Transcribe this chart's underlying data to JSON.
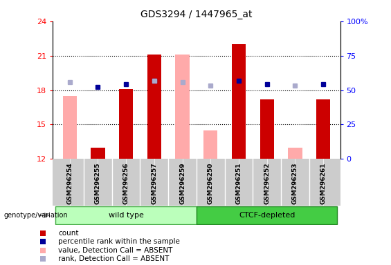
{
  "title": "GDS3294 / 1447965_at",
  "samples": [
    "GSM296254",
    "GSM296255",
    "GSM296256",
    "GSM296257",
    "GSM296259",
    "GSM296250",
    "GSM296251",
    "GSM296252",
    "GSM296253",
    "GSM296261"
  ],
  "count_values": [
    null,
    13.0,
    18.1,
    21.1,
    null,
    null,
    22.0,
    17.2,
    null,
    17.2
  ],
  "count_absent": [
    17.5,
    null,
    null,
    null,
    21.1,
    14.5,
    null,
    null,
    13.0,
    null
  ],
  "rank_present": [
    null,
    18.3,
    18.5,
    18.8,
    null,
    null,
    18.8,
    18.5,
    null,
    18.5
  ],
  "rank_absent": [
    18.7,
    null,
    null,
    18.8,
    18.7,
    18.4,
    null,
    null,
    18.4,
    null
  ],
  "groups": [
    "wild type",
    "wild type",
    "wild type",
    "wild type",
    "wild type",
    "CTCF-depleted",
    "CTCF-depleted",
    "CTCF-depleted",
    "CTCF-depleted",
    "CTCF-depleted"
  ],
  "ylim_left": [
    12,
    24
  ],
  "ylim_right": [
    0,
    100
  ],
  "yticks_left": [
    12,
    15,
    18,
    21,
    24
  ],
  "yticks_right": [
    0,
    25,
    50,
    75,
    100
  ],
  "ytick_right_labels": [
    "0",
    "25",
    "50",
    "75",
    "100%"
  ],
  "color_count": "#cc0000",
  "color_count_absent": "#ffaaaa",
  "color_rank_present": "#000099",
  "color_rank_absent": "#aaaacc",
  "color_wt_light": "#bbffbb",
  "color_ctcf_dark": "#44cc44",
  "bar_width": 0.5,
  "marker_size": 5,
  "hlines": [
    15,
    18,
    21
  ],
  "legend_entries": [
    "count",
    "percentile rank within the sample",
    "value, Detection Call = ABSENT",
    "rank, Detection Call = ABSENT"
  ],
  "legend_colors": [
    "#cc0000",
    "#000099",
    "#ffaaaa",
    "#aaaacc"
  ]
}
